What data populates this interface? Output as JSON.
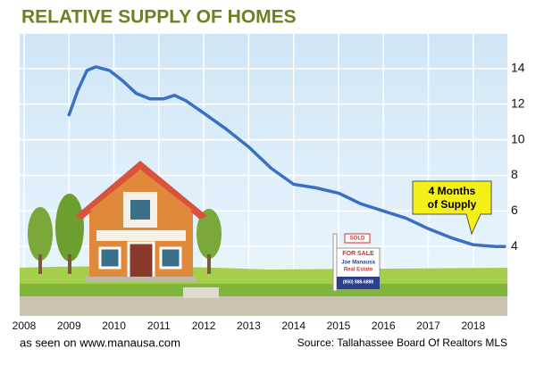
{
  "chart_data": {
    "type": "line",
    "title": "RELATIVE SUPPLY OF HOMES",
    "x": [
      2009.0,
      2009.2,
      2009.4,
      2009.6,
      2009.9,
      2010.2,
      2010.5,
      2010.8,
      2011.1,
      2011.35,
      2011.6,
      2012.0,
      2012.5,
      2013.0,
      2013.5,
      2014.0,
      2014.5,
      2015.0,
      2015.5,
      2016.0,
      2016.5,
      2017.0,
      2017.5,
      2018.0,
      2018.5,
      2018.7
    ],
    "values": [
      11.4,
      12.8,
      13.9,
      14.1,
      13.9,
      13.3,
      12.6,
      12.3,
      12.3,
      12.5,
      12.2,
      11.5,
      10.6,
      9.6,
      8.4,
      7.5,
      7.3,
      7.0,
      6.4,
      6.0,
      5.6,
      5.0,
      4.5,
      4.1,
      4.0,
      4.0
    ],
    "color": "#3a6fc4",
    "xlim": [
      2008,
      2018.7
    ],
    "xticks": [
      2008,
      2009,
      2010,
      2011,
      2012,
      2013,
      2014,
      2015,
      2016,
      2017,
      2018
    ],
    "ylim": [
      0,
      16
    ],
    "yticks": [
      4,
      6,
      8,
      10,
      12,
      14
    ],
    "grid": true,
    "annotation": [
      "4 Months",
      "of Supply"
    ],
    "sign_texts": [
      "SOLD",
      "FOR SALE",
      "Joe Manausa",
      "Real Estate",
      "(850) 888-6888"
    ],
    "caption": "as seen on www.manausa.com",
    "source": "Source: Tallahassee Board Of Realtors  MLS"
  }
}
